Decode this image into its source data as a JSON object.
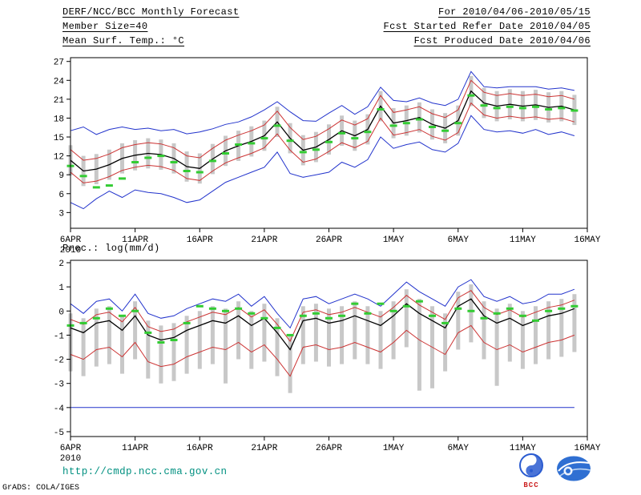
{
  "header": {
    "title": "DERF/NCC/BCC Monthly Forecast",
    "member_size": "Member Size=40",
    "for_range": "For 2010/04/06-2010/05/15",
    "refer_date": "Fcst Started Refer Date 2010/04/05",
    "produced_date": "Fcst Produced Date 2010/04/06"
  },
  "footer": {
    "url": "http://cmdp.ncc.cma.gov.cn",
    "credit": "GrADS: COLA/IGES",
    "bcc_label": "BCC",
    "logos": [
      "bcc-logo",
      "cma-logo"
    ]
  },
  "colors": {
    "max_min": "#2233cc",
    "percentile": "#cc3333",
    "mean": "#000000",
    "observation": "#33cc33",
    "spread_bar": "#c8c8c8",
    "url_text": "#009080"
  },
  "chart_data": [
    {
      "type": "line",
      "panel_name": "temperature-panel",
      "title": "Mean Surf. Temp.: °C",
      "x_tick_labels": [
        "6APR",
        "11APR",
        "16APR",
        "21APR",
        "26APR",
        "1MAY",
        "6MAY",
        "11MAY",
        "16MAY"
      ],
      "x_year_label": "2010",
      "x_tick_interval": 5,
      "n_points": 40,
      "ylim": [
        0.5,
        27.6
      ],
      "yticks": [
        3,
        6,
        9,
        12,
        15,
        18,
        21,
        24,
        27
      ],
      "legend_position": "none",
      "grid": false,
      "bars": {
        "color": "#c8c8c8",
        "lo": [
          8.9,
          7.2,
          7.5,
          8.2,
          9.2,
          9.7,
          10.0,
          9.8,
          9.2,
          7.9,
          7.6,
          9.1,
          10.4,
          11.2,
          11.9,
          12.8,
          15.0,
          12.4,
          10.5,
          11.0,
          12.2,
          13.6,
          12.8,
          13.8,
          17.5,
          14.8,
          15.2,
          15.7,
          14.6,
          14.0,
          15.2,
          19.9,
          18.0,
          17.5,
          17.8,
          17.5,
          17.7,
          17.3,
          17.5,
          16.9
        ],
        "hi": [
          13.7,
          12.0,
          12.3,
          13.0,
          14.0,
          14.5,
          14.8,
          14.6,
          14.0,
          12.7,
          12.4,
          13.9,
          15.2,
          16.0,
          16.7,
          17.6,
          19.8,
          17.2,
          15.3,
          15.8,
          17.0,
          18.4,
          17.6,
          18.6,
          22.3,
          19.6,
          20.0,
          20.5,
          19.4,
          18.8,
          20.0,
          24.7,
          22.8,
          22.3,
          22.6,
          22.3,
          22.5,
          22.1,
          22.3,
          21.7
        ]
      },
      "series": [
        {
          "name": "ensemble-max",
          "color": "#2233cc",
          "width": 1,
          "values": [
            16.0,
            16.6,
            15.4,
            16.2,
            16.6,
            16.2,
            16.4,
            16.0,
            16.2,
            15.5,
            15.8,
            16.3,
            17.0,
            17.4,
            18.2,
            19.3,
            20.6,
            19.0,
            17.6,
            17.5,
            18.8,
            20.0,
            18.6,
            19.8,
            22.9,
            20.8,
            20.6,
            21.2,
            20.4,
            20.0,
            21.0,
            25.4,
            23.0,
            22.8,
            23.0,
            23.0,
            23.0,
            22.6,
            22.8,
            22.4
          ]
        },
        {
          "name": "upper-percentile",
          "color": "#cc3333",
          "width": 1,
          "values": [
            13.0,
            11.3,
            11.6,
            12.3,
            13.3,
            13.8,
            14.1,
            13.9,
            13.3,
            12.0,
            11.7,
            13.2,
            14.5,
            15.3,
            16.0,
            16.9,
            19.1,
            16.5,
            14.6,
            15.1,
            16.3,
            17.7,
            16.9,
            17.9,
            21.6,
            18.9,
            19.3,
            19.8,
            18.7,
            18.1,
            19.3,
            24.0,
            22.1,
            21.6,
            21.9,
            21.6,
            21.8,
            21.4,
            21.6,
            21.0
          ]
        },
        {
          "name": "ensemble-mean",
          "color": "#000000",
          "width": 1.3,
          "values": [
            11.3,
            9.6,
            9.9,
            10.6,
            11.6,
            12.1,
            12.4,
            12.2,
            11.6,
            10.3,
            10.0,
            11.5,
            12.8,
            13.6,
            14.3,
            15.2,
            17.4,
            14.8,
            12.9,
            13.4,
            14.6,
            16.0,
            15.2,
            16.2,
            19.9,
            17.2,
            17.6,
            18.1,
            17.0,
            16.4,
            17.6,
            22.3,
            20.4,
            19.9,
            20.2,
            19.9,
            20.1,
            19.7,
            19.9,
            19.3
          ]
        },
        {
          "name": "lower-percentile",
          "color": "#cc3333",
          "width": 1,
          "values": [
            9.4,
            7.7,
            8.0,
            8.7,
            9.7,
            10.2,
            10.5,
            10.3,
            9.7,
            8.4,
            8.1,
            9.6,
            10.9,
            11.7,
            12.4,
            13.3,
            15.5,
            12.9,
            11.0,
            11.5,
            12.7,
            14.1,
            13.3,
            14.3,
            18.0,
            15.3,
            15.7,
            16.2,
            15.1,
            14.5,
            15.7,
            20.4,
            18.5,
            18.0,
            18.3,
            18.0,
            18.2,
            17.8,
            18.0,
            17.4
          ]
        },
        {
          "name": "ensemble-min",
          "color": "#2233cc",
          "width": 1,
          "values": [
            4.6,
            3.6,
            5.2,
            6.4,
            5.4,
            6.6,
            6.2,
            6.0,
            5.4,
            4.6,
            5.0,
            6.4,
            7.8,
            8.6,
            9.4,
            10.2,
            12.6,
            9.2,
            8.6,
            9.0,
            9.4,
            11.0,
            10.2,
            11.4,
            15.0,
            13.2,
            13.8,
            14.2,
            13.0,
            12.6,
            14.0,
            18.4,
            16.2,
            15.8,
            16.0,
            15.6,
            16.2,
            15.4,
            15.8,
            15.2
          ]
        },
        {
          "name": "observation",
          "color": "#33cc33",
          "style": "dashes",
          "width": 3,
          "values": [
            10.4,
            8.8,
            7.0,
            7.3,
            8.4,
            11.0,
            11.7,
            12.0,
            11.0,
            9.6,
            9.4,
            11.2,
            12.4,
            13.8,
            14.0,
            14.8,
            16.8,
            14.4,
            12.6,
            13.0,
            14.2,
            15.6,
            14.8,
            15.8,
            19.4,
            16.8,
            17.2,
            17.8,
            16.6,
            16.0,
            17.2,
            21.6,
            20.0,
            19.6,
            19.8,
            19.6,
            19.8,
            19.4,
            19.6,
            19.2
          ]
        }
      ]
    },
    {
      "type": "line",
      "panel_name": "precipitation-panel",
      "title": "Prec.: log(mm/d)",
      "x_tick_labels": [
        "6APR",
        "11APR",
        "16APR",
        "21APR",
        "26APR",
        "1MAY",
        "6MAY",
        "11MAY",
        "16MAY"
      ],
      "x_year_label": "2010",
      "x_tick_interval": 5,
      "n_points": 40,
      "ylim": [
        -5.2,
        2.1
      ],
      "yticks": [
        2,
        1,
        0,
        -1,
        -2,
        -3,
        -4,
        -5
      ],
      "legend_position": "none",
      "grid": false,
      "bars": {
        "color": "#c8c8c8",
        "lo": [
          -2.5,
          -2.7,
          -2.3,
          -2.2,
          -2.6,
          -2.0,
          -2.8,
          -3.0,
          -2.9,
          -2.6,
          -2.4,
          -2.2,
          -3.0,
          -2.0,
          -2.4,
          -2.1,
          -2.7,
          -3.4,
          -2.2,
          -2.1,
          -2.3,
          -2.2,
          -2.0,
          -2.2,
          -2.4,
          -2.0,
          -1.5,
          -3.3,
          -3.2,
          -2.5,
          -1.6,
          -1.3,
          -2.0,
          -3.1,
          -2.1,
          -2.4,
          -2.2,
          -2.0,
          -1.9,
          -1.7
        ],
        "hi": [
          -0.1,
          -0.3,
          0.1,
          0.2,
          -0.2,
          0.4,
          -0.4,
          -0.6,
          -0.5,
          -0.2,
          0.0,
          0.2,
          0.1,
          0.4,
          0.0,
          0.3,
          -0.3,
          -1.0,
          0.2,
          0.3,
          0.1,
          0.2,
          0.4,
          0.2,
          0.0,
          0.4,
          0.9,
          0.5,
          0.2,
          -0.1,
          0.8,
          1.1,
          0.4,
          0.1,
          0.3,
          0.0,
          0.2,
          0.4,
          0.5,
          0.7
        ]
      },
      "series": [
        {
          "name": "ensemble-max",
          "color": "#2233cc",
          "width": 1,
          "values": [
            0.3,
            -0.1,
            0.4,
            0.5,
            0.0,
            0.7,
            -0.1,
            -0.3,
            -0.2,
            0.1,
            0.3,
            0.5,
            0.4,
            0.7,
            0.2,
            0.6,
            -0.1,
            -0.7,
            0.5,
            0.6,
            0.3,
            0.5,
            0.7,
            0.5,
            0.2,
            0.7,
            1.2,
            0.8,
            0.5,
            0.2,
            1.0,
            1.3,
            0.6,
            0.4,
            0.6,
            0.3,
            0.4,
            0.7,
            0.7,
            0.9
          ]
        },
        {
          "name": "upper-percentile",
          "color": "#cc3333",
          "width": 1,
          "values": [
            -0.35,
            -0.55,
            -0.15,
            -0.05,
            -0.45,
            0.15,
            -0.65,
            -0.85,
            -0.75,
            -0.45,
            -0.25,
            -0.05,
            -0.15,
            0.15,
            -0.25,
            0.05,
            -0.55,
            -1.25,
            -0.05,
            0.05,
            -0.15,
            -0.05,
            0.15,
            -0.05,
            -0.25,
            0.15,
            0.65,
            0.25,
            -0.05,
            -0.35,
            0.55,
            0.85,
            0.15,
            -0.15,
            0.05,
            -0.25,
            -0.05,
            0.15,
            0.25,
            0.45
          ]
        },
        {
          "name": "ensemble-mean",
          "color": "#000000",
          "width": 1.3,
          "values": [
            -0.7,
            -0.9,
            -0.5,
            -0.4,
            -0.8,
            -0.2,
            -1.0,
            -1.2,
            -1.1,
            -0.8,
            -0.6,
            -0.4,
            -0.5,
            -0.2,
            -0.6,
            -0.3,
            -0.9,
            -1.6,
            -0.4,
            -0.3,
            -0.5,
            -0.4,
            -0.2,
            -0.4,
            -0.6,
            -0.2,
            0.3,
            -0.1,
            -0.4,
            -0.7,
            0.2,
            0.5,
            -0.2,
            -0.5,
            -0.3,
            -0.6,
            -0.4,
            -0.2,
            -0.1,
            0.1
          ]
        },
        {
          "name": "lower-percentile",
          "color": "#cc3333",
          "width": 1,
          "values": [
            -1.8,
            -2.0,
            -1.6,
            -1.5,
            -1.9,
            -1.3,
            -2.1,
            -2.3,
            -2.2,
            -1.9,
            -1.7,
            -1.5,
            -1.6,
            -1.3,
            -1.7,
            -1.4,
            -2.0,
            -2.7,
            -1.5,
            -1.4,
            -1.6,
            -1.5,
            -1.3,
            -1.5,
            -1.7,
            -1.3,
            -0.8,
            -1.2,
            -1.5,
            -1.8,
            -0.9,
            -0.6,
            -1.3,
            -1.6,
            -1.4,
            -1.7,
            -1.5,
            -1.3,
            -1.2,
            -1.0
          ]
        },
        {
          "name": "ensemble-min",
          "color": "#2233cc",
          "width": 1,
          "values": [
            -4,
            -4,
            -4,
            -4,
            -4,
            -4,
            -4,
            -4,
            -4,
            -4,
            -4,
            -4,
            -4,
            -4,
            -4,
            -4,
            -4,
            -4,
            -4,
            -4,
            -4,
            -4,
            -4,
            -4,
            -4,
            -4,
            -4,
            -4,
            -4,
            -4,
            -4,
            -4,
            -4,
            -4,
            -4,
            -4,
            -4,
            -4,
            -4,
            -4
          ]
        },
        {
          "name": "observation",
          "color": "#33cc33",
          "style": "dashes",
          "width": 3,
          "values": [
            -0.6,
            -0.5,
            -0.3,
            0.1,
            -0.2,
            0.0,
            -0.9,
            -1.3,
            -1.2,
            -0.5,
            0.2,
            0.1,
            0.0,
            0.1,
            -0.1,
            -0.3,
            -0.7,
            -1.0,
            -0.2,
            -0.1,
            -0.3,
            -0.2,
            0.3,
            -0.1,
            0.3,
            0.0,
            0.2,
            0.4,
            -0.2,
            -0.5,
            0.1,
            0.0,
            -0.3,
            -0.1,
            0.1,
            -0.2,
            -0.4,
            0.0,
            0.1,
            0.2
          ]
        }
      ]
    }
  ]
}
